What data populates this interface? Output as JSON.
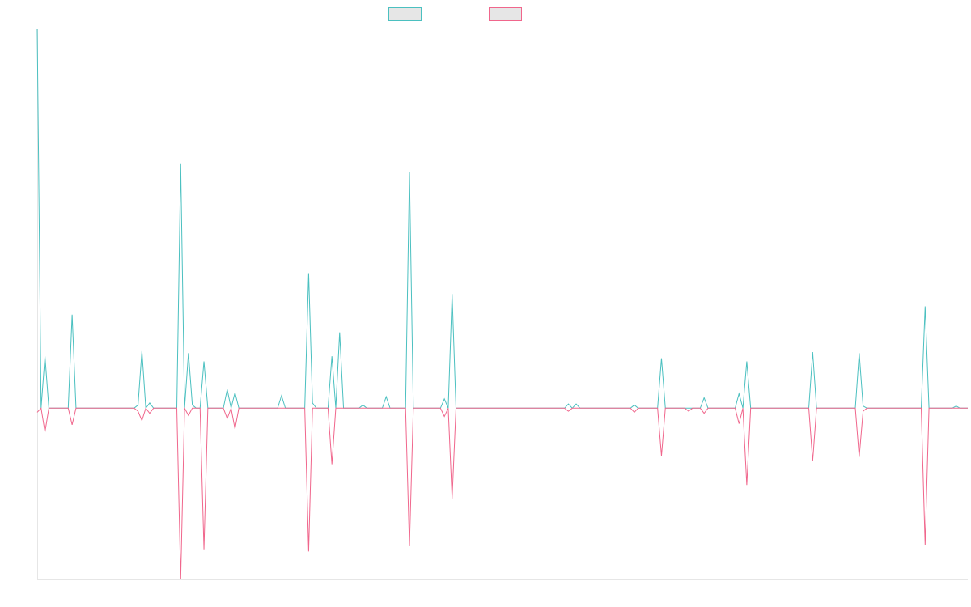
{
  "chart_data": {
    "type": "line",
    "title": "",
    "xlabel": "",
    "ylabel": "",
    "grid": false,
    "legend_position": "top-center",
    "ylim": [
      -16.5,
      36.5
    ],
    "series": [
      {
        "name": "",
        "color": "#4bc0c0",
        "fill": "#e6e6e6",
        "points": [
          [
            0,
            36.5
          ],
          [
            1,
            0
          ],
          [
            2,
            5
          ],
          [
            3,
            0
          ],
          [
            5,
            0
          ],
          [
            8,
            0
          ],
          [
            9,
            9
          ],
          [
            10,
            0
          ],
          [
            25,
            0
          ],
          [
            26,
            0.3
          ],
          [
            27,
            5.5
          ],
          [
            28,
            0
          ],
          [
            29,
            0.5
          ],
          [
            30,
            0
          ],
          [
            36,
            0
          ],
          [
            37,
            23.5
          ],
          [
            38,
            0
          ],
          [
            39,
            5.3
          ],
          [
            40,
            0.3
          ],
          [
            41,
            0
          ],
          [
            42,
            0
          ],
          [
            43,
            4.5
          ],
          [
            44,
            0
          ],
          [
            48,
            0
          ],
          [
            49,
            1.8
          ],
          [
            50,
            0
          ],
          [
            51,
            1.5
          ],
          [
            52,
            0
          ],
          [
            62,
            0
          ],
          [
            63,
            1.2
          ],
          [
            64,
            0
          ],
          [
            67,
            0
          ],
          [
            68,
            0
          ],
          [
            69,
            0
          ],
          [
            70,
            13
          ],
          [
            71,
            0.5
          ],
          [
            72,
            0
          ],
          [
            75,
            0
          ],
          [
            76,
            5
          ],
          [
            77,
            0
          ],
          [
            78,
            7.3
          ],
          [
            79,
            0
          ],
          [
            83,
            0
          ],
          [
            84,
            0.3
          ],
          [
            85,
            0
          ],
          [
            89,
            0
          ],
          [
            90,
            1.1
          ],
          [
            91,
            0
          ],
          [
            92,
            0
          ],
          [
            93,
            0
          ],
          [
            94,
            0
          ],
          [
            95,
            0
          ],
          [
            96,
            22.7
          ],
          [
            97,
            0
          ],
          [
            98,
            0
          ],
          [
            104,
            0
          ],
          [
            105,
            0.9
          ],
          [
            106,
            0
          ],
          [
            107,
            11
          ],
          [
            108,
            0
          ],
          [
            128,
            0
          ],
          [
            129,
            0
          ],
          [
            136,
            0
          ],
          [
            137,
            0.4
          ],
          [
            138,
            0
          ],
          [
            139,
            0.4
          ],
          [
            140,
            0
          ],
          [
            148,
            0
          ],
          [
            149,
            0
          ],
          [
            152,
            0
          ],
          [
            153,
            0
          ],
          [
            154,
            0.3
          ],
          [
            155,
            0
          ],
          [
            160,
            0
          ],
          [
            161,
            4.8
          ],
          [
            162,
            0
          ],
          [
            167,
            0
          ],
          [
            168,
            0
          ],
          [
            169,
            0
          ],
          [
            171,
            0
          ],
          [
            172,
            1
          ],
          [
            173,
            0
          ],
          [
            175,
            0
          ],
          [
            177,
            0
          ],
          [
            180,
            0
          ],
          [
            181,
            1.4
          ],
          [
            182,
            0
          ],
          [
            183,
            4.5
          ],
          [
            184,
            0
          ],
          [
            199,
            0
          ],
          [
            200,
            5.4
          ],
          [
            201,
            0
          ],
          [
            211,
            0
          ],
          [
            212,
            5.3
          ],
          [
            213,
            0.2
          ],
          [
            214,
            0
          ],
          [
            215,
            0
          ],
          [
            227,
            0
          ],
          [
            228,
            0
          ],
          [
            229,
            9.8
          ],
          [
            230,
            0
          ],
          [
            236,
            0
          ],
          [
            237,
            0.2
          ],
          [
            238,
            0
          ],
          [
            240,
            0
          ]
        ]
      },
      {
        "name": "",
        "color": "#f0668c",
        "fill": "#e6e6e6",
        "points": [
          [
            0,
            -0.4
          ],
          [
            1,
            0
          ],
          [
            2,
            -2.3
          ],
          [
            3,
            0
          ],
          [
            5,
            0
          ],
          [
            8,
            0
          ],
          [
            9,
            -1.6
          ],
          [
            10,
            0
          ],
          [
            25,
            0
          ],
          [
            26,
            -0.3
          ],
          [
            27,
            -1.2
          ],
          [
            28,
            0
          ],
          [
            29,
            -0.5
          ],
          [
            30,
            0
          ],
          [
            36,
            0
          ],
          [
            37,
            -16.5
          ],
          [
            38,
            0
          ],
          [
            39,
            -0.7
          ],
          [
            40,
            0
          ],
          [
            41,
            0
          ],
          [
            42,
            0
          ],
          [
            43,
            -13.6
          ],
          [
            44,
            0
          ],
          [
            48,
            0
          ],
          [
            49,
            -1
          ],
          [
            50,
            0
          ],
          [
            51,
            -2
          ],
          [
            52,
            0
          ],
          [
            62,
            0
          ],
          [
            63,
            0
          ],
          [
            64,
            0
          ],
          [
            67,
            0
          ],
          [
            68,
            0
          ],
          [
            69,
            0
          ],
          [
            70,
            -13.8
          ],
          [
            71,
            0
          ],
          [
            72,
            0
          ],
          [
            75,
            0
          ],
          [
            76,
            -5.4
          ],
          [
            77,
            0
          ],
          [
            78,
            0
          ],
          [
            79,
            0
          ],
          [
            83,
            0
          ],
          [
            84,
            0
          ],
          [
            85,
            0
          ],
          [
            89,
            0
          ],
          [
            90,
            0
          ],
          [
            91,
            0
          ],
          [
            92,
            0
          ],
          [
            93,
            0
          ],
          [
            94,
            0
          ],
          [
            95,
            0
          ],
          [
            96,
            -13.3
          ],
          [
            97,
            0
          ],
          [
            98,
            0
          ],
          [
            104,
            0
          ],
          [
            105,
            -0.8
          ],
          [
            106,
            0
          ],
          [
            107,
            -8.7
          ],
          [
            108,
            0
          ],
          [
            128,
            0
          ],
          [
            129,
            0
          ],
          [
            136,
            0
          ],
          [
            137,
            -0.3
          ],
          [
            138,
            0
          ],
          [
            139,
            0
          ],
          [
            140,
            0
          ],
          [
            148,
            0
          ],
          [
            149,
            0
          ],
          [
            152,
            0
          ],
          [
            153,
            0
          ],
          [
            154,
            -0.4
          ],
          [
            155,
            0
          ],
          [
            160,
            0
          ],
          [
            161,
            -4.6
          ],
          [
            162,
            0
          ],
          [
            167,
            0
          ],
          [
            168,
            -0.3
          ],
          [
            169,
            0
          ],
          [
            171,
            0
          ],
          [
            172,
            -0.5
          ],
          [
            173,
            0
          ],
          [
            175,
            0
          ],
          [
            177,
            0
          ],
          [
            180,
            0
          ],
          [
            181,
            -1.5
          ],
          [
            182,
            0
          ],
          [
            183,
            -7.4
          ],
          [
            184,
            0
          ],
          [
            199,
            0
          ],
          [
            200,
            -5.1
          ],
          [
            201,
            0
          ],
          [
            211,
            0
          ],
          [
            212,
            -4.7
          ],
          [
            213,
            -0.3
          ],
          [
            214,
            0
          ],
          [
            215,
            0
          ],
          [
            227,
            0
          ],
          [
            228,
            0
          ],
          [
            229,
            -13.2
          ],
          [
            230,
            0
          ],
          [
            236,
            0
          ],
          [
            237,
            0
          ],
          [
            238,
            0
          ],
          [
            240,
            0
          ]
        ]
      }
    ]
  }
}
